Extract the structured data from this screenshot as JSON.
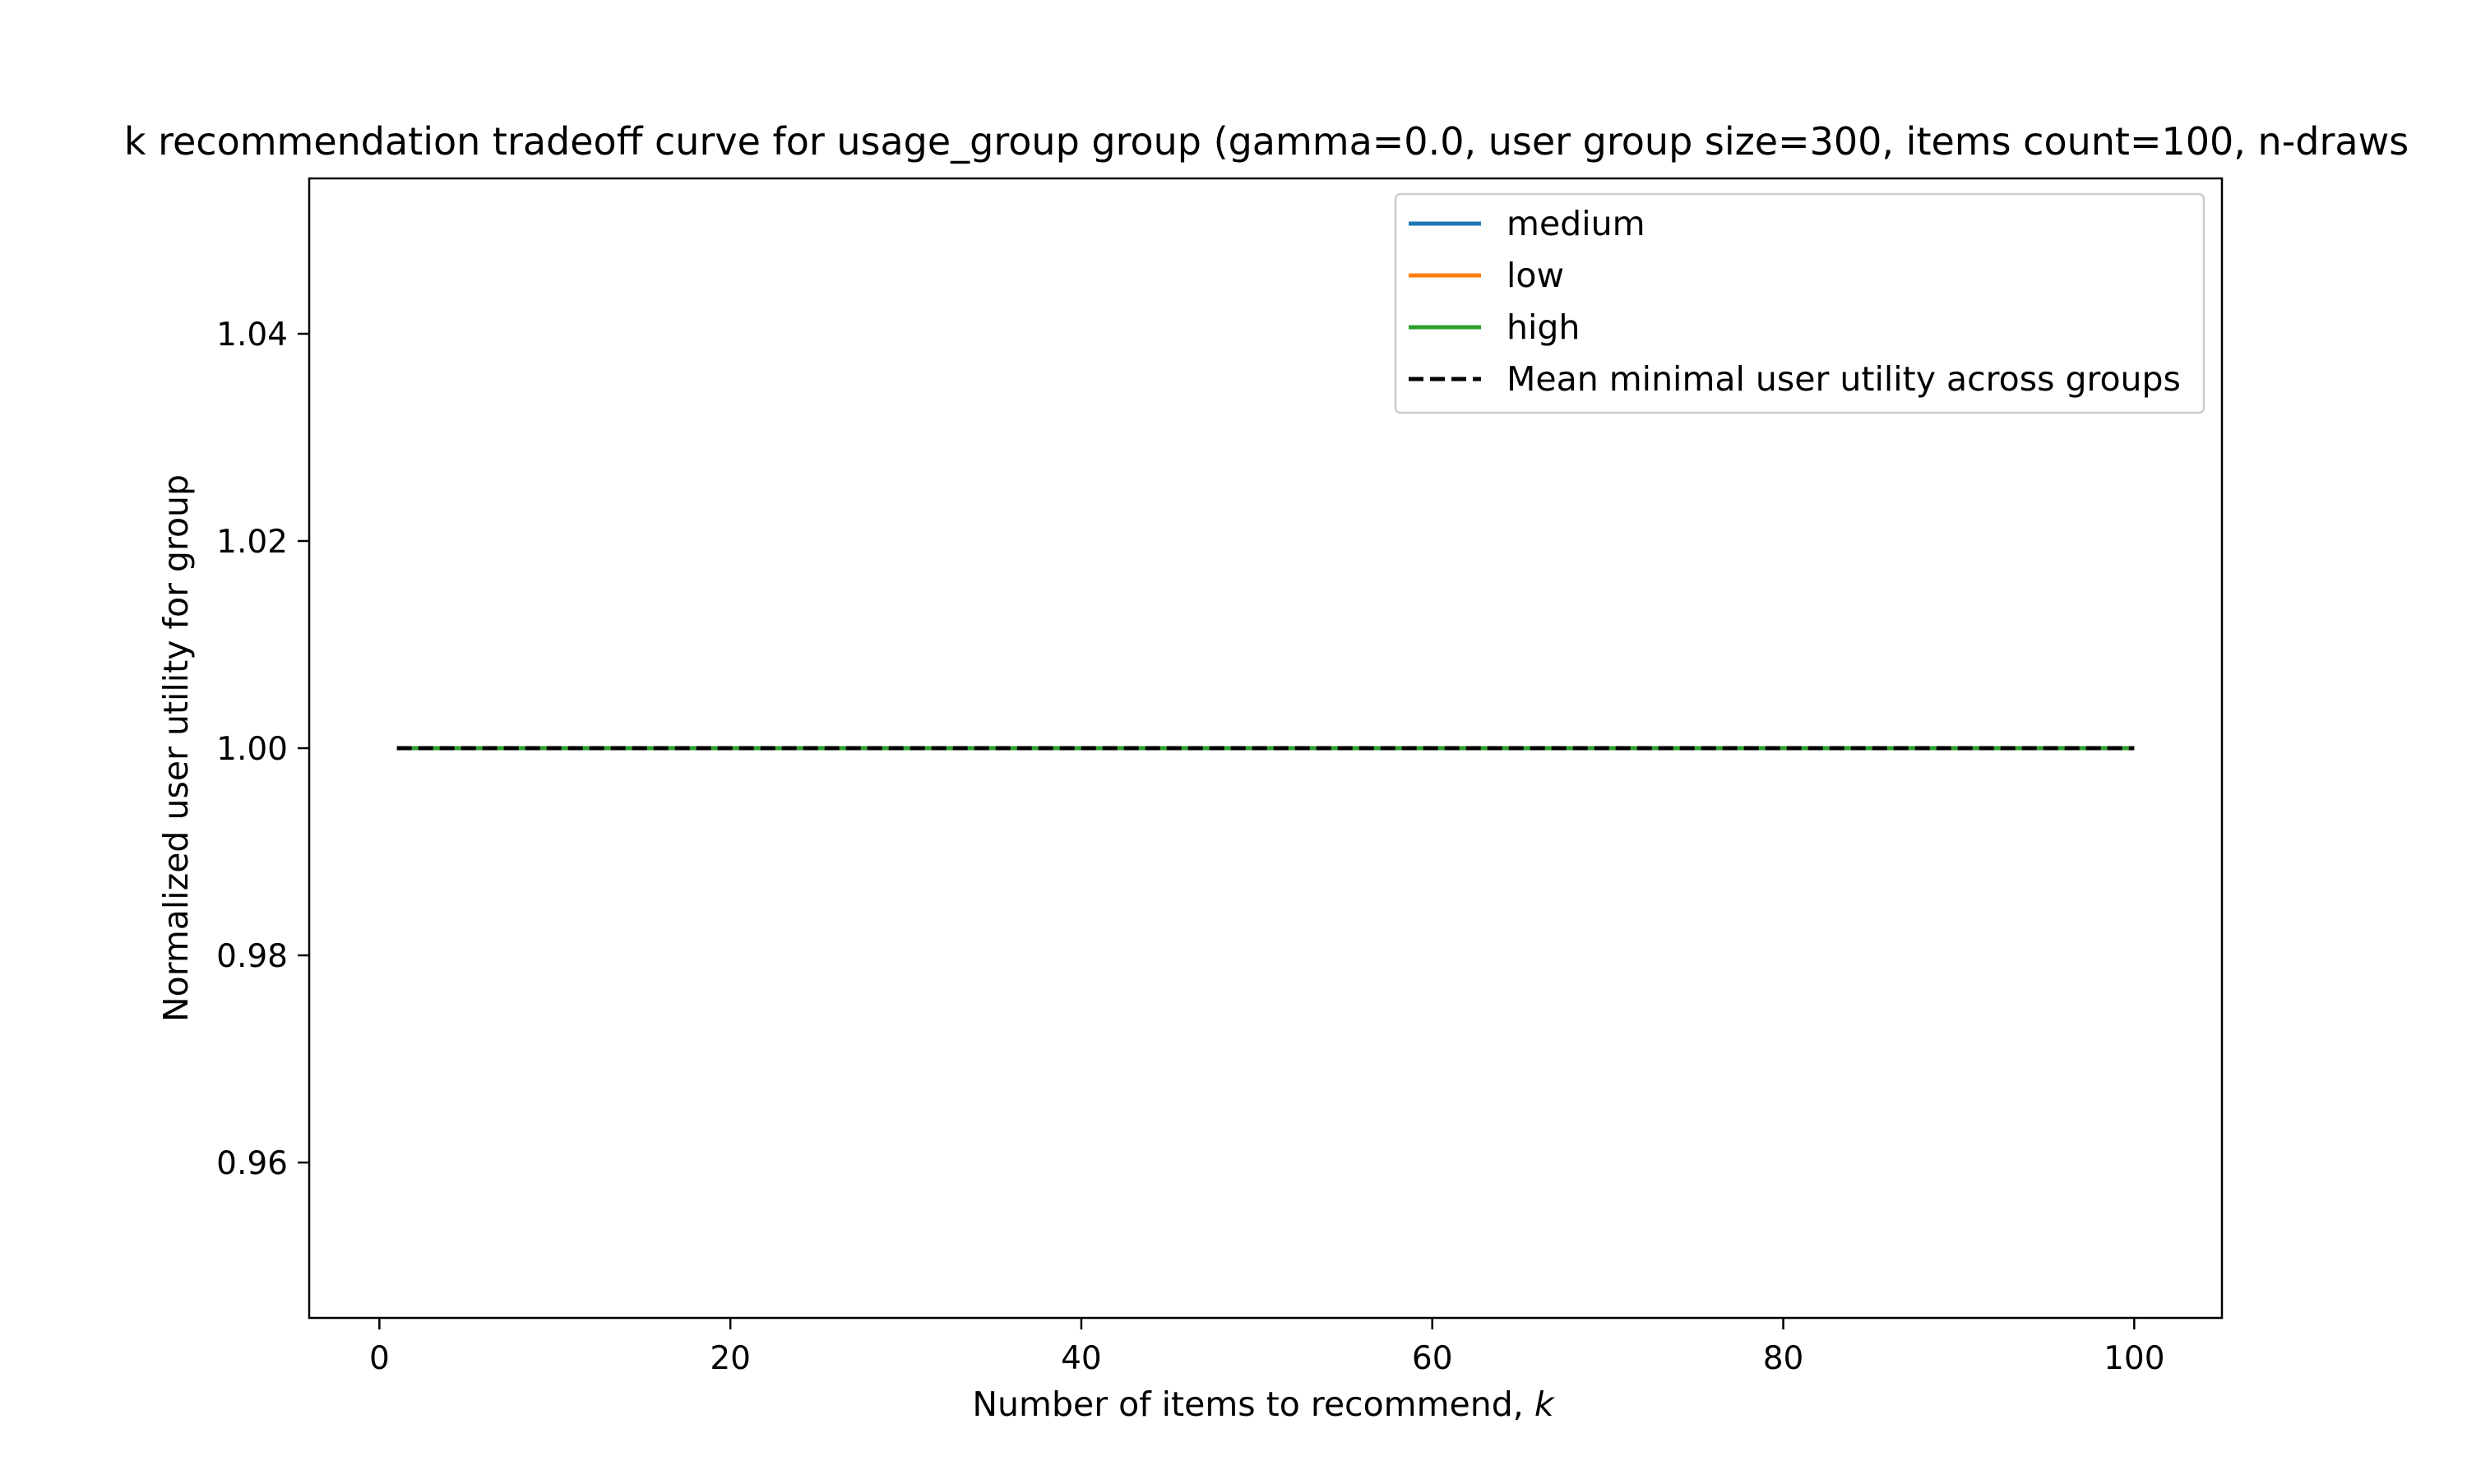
{
  "chart_data": {
    "type": "line",
    "title": "k recommendation tradeoff curve for usage_group group (gamma=0.0, user group size=300, items count=100, n-draws",
    "xlabel": "Number of items to recommend, ",
    "xlabel_var": "k",
    "ylabel": "Normalized user utility for group",
    "xlim": [
      -4,
      105
    ],
    "ylim": [
      0.945,
      1.055
    ],
    "x_ticks": [
      0,
      20,
      40,
      60,
      80,
      100
    ],
    "x_tick_labels": [
      "0",
      "20",
      "40",
      "60",
      "80",
      "100"
    ],
    "y_ticks": [
      0.96,
      0.98,
      1.0,
      1.02,
      1.04
    ],
    "y_tick_labels": [
      "0.96",
      "0.98",
      "1.00",
      "1.02",
      "1.04"
    ],
    "grid": false,
    "legend_position": "upper-right",
    "x": [
      1,
      100
    ],
    "series": [
      {
        "name": "medium",
        "color": "#1f77b4",
        "dash": "solid",
        "values": [
          1.0,
          1.0
        ]
      },
      {
        "name": "low",
        "color": "#ff7f0e",
        "dash": "solid",
        "values": [
          1.0,
          1.0
        ]
      },
      {
        "name": "high",
        "color": "#2ca02c",
        "dash": "solid",
        "values": [
          1.0,
          1.0
        ]
      },
      {
        "name": "Mean minimal user utility across groups",
        "color": "#000000",
        "dash": "dashed",
        "values": [
          1.0,
          1.0
        ]
      }
    ]
  }
}
